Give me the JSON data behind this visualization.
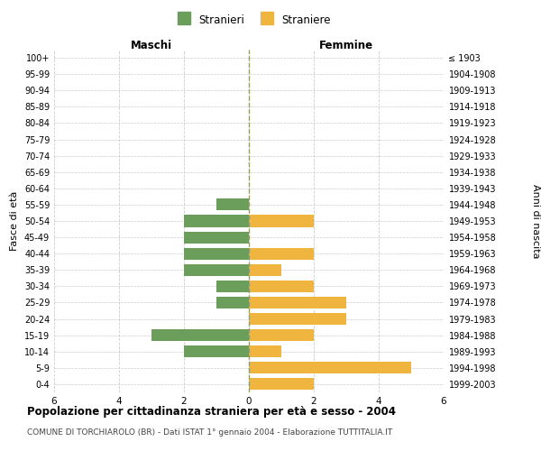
{
  "age_groups": [
    "0-4",
    "5-9",
    "10-14",
    "15-19",
    "20-24",
    "25-29",
    "30-34",
    "35-39",
    "40-44",
    "45-49",
    "50-54",
    "55-59",
    "60-64",
    "65-69",
    "70-74",
    "75-79",
    "80-84",
    "85-89",
    "90-94",
    "95-99",
    "100+"
  ],
  "birth_years": [
    "1999-2003",
    "1994-1998",
    "1989-1993",
    "1984-1988",
    "1979-1983",
    "1974-1978",
    "1969-1973",
    "1964-1968",
    "1959-1963",
    "1954-1958",
    "1949-1953",
    "1944-1948",
    "1939-1943",
    "1934-1938",
    "1929-1933",
    "1924-1928",
    "1919-1923",
    "1914-1918",
    "1909-1913",
    "1904-1908",
    "≤ 1903"
  ],
  "males": [
    0,
    0,
    2,
    3,
    0,
    1,
    1,
    2,
    2,
    2,
    2,
    1,
    0,
    0,
    0,
    0,
    0,
    0,
    0,
    0,
    0
  ],
  "females": [
    2,
    5,
    1,
    2,
    3,
    3,
    2,
    1,
    2,
    0,
    2,
    0,
    0,
    0,
    0,
    0,
    0,
    0,
    0,
    0,
    0
  ],
  "male_color": "#6a9e5a",
  "female_color": "#f0b53e",
  "male_label": "Stranieri",
  "female_label": "Straniere",
  "title": "Popolazione per cittadinanza straniera per età e sesso - 2004",
  "subtitle": "COMUNE DI TORCHIAROLO (BR) - Dati ISTAT 1° gennaio 2004 - Elaborazione TUTTITALIA.IT",
  "xlabel_left": "Maschi",
  "xlabel_right": "Femmine",
  "ylabel_left": "Fasce di età",
  "ylabel_right": "Anni di nascita",
  "xlim": 6,
  "background_color": "#ffffff",
  "grid_color": "#cccccc"
}
